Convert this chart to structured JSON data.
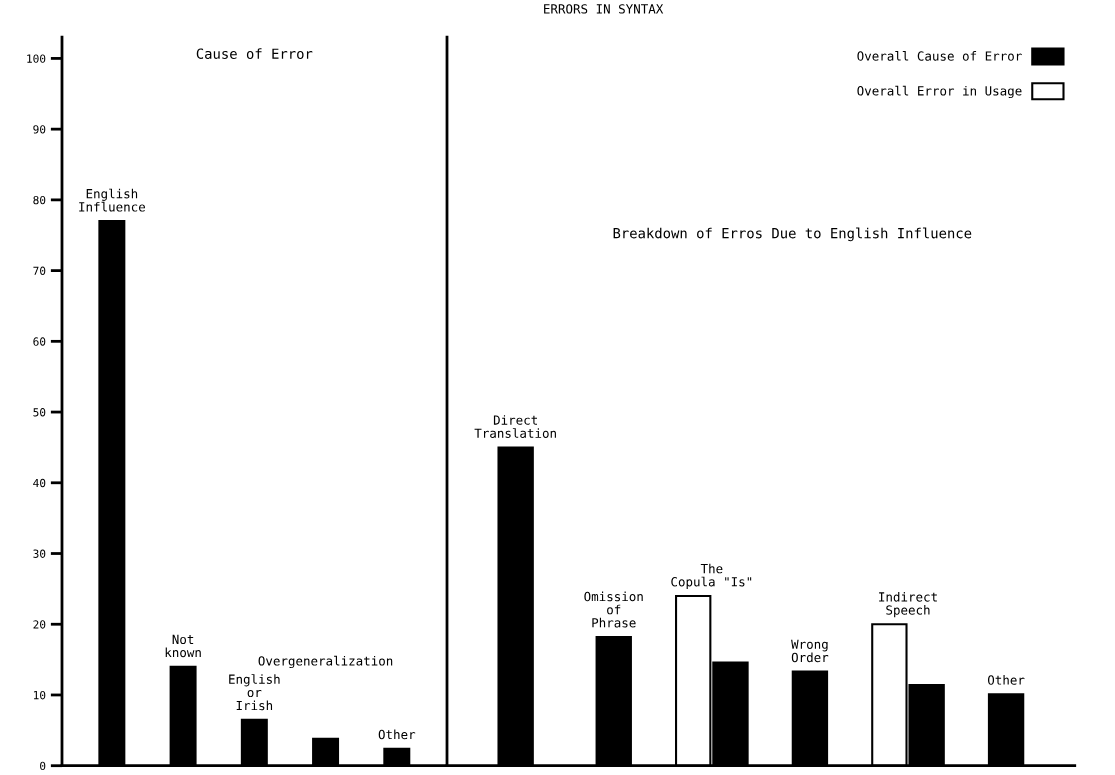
{
  "chart_data": [
    {
      "type": "bar",
      "title": "Cause of Error",
      "categories": [
        "English\nInfluence",
        "Not\nknown",
        "English\nor\nIrish",
        "Overgeneralization",
        "Other"
      ],
      "series": [
        {
          "color": "#000000",
          "values": [
            77,
            14,
            6.5,
            3.8,
            2.4
          ]
        }
      ],
      "ylim": [
        0,
        103
      ],
      "yticks": [
        0,
        10,
        20,
        30,
        40,
        50,
        60,
        70,
        80,
        90,
        100
      ],
      "tick_labels": "y",
      "grid": false
    },
    {
      "type": "bar",
      "title": "Breakdown of Erros Due to English Influence",
      "annotations": [
        "ERRORS IN SYNTAX"
      ],
      "categories": [
        "Direct\nTranslation",
        "Omission\nof\nPhrase",
        "The\nCopula \"Is\"",
        "Wrong\nOrder",
        "Indirect\nSpeech",
        "Other"
      ],
      "series": [
        {
          "name": "Overall Error in Usage",
          "color": "#ffffff",
          "values": [
            null,
            null,
            24,
            null,
            20,
            null
          ]
        },
        {
          "name": "Overall Cause of Error",
          "color": "#000000",
          "values": [
            45,
            18.2,
            14.6,
            13.3,
            11.4,
            10.1
          ]
        }
      ],
      "ylim": [
        0,
        103
      ],
      "tick_labels": false,
      "grid": false,
      "legend": "top right"
    }
  ]
}
